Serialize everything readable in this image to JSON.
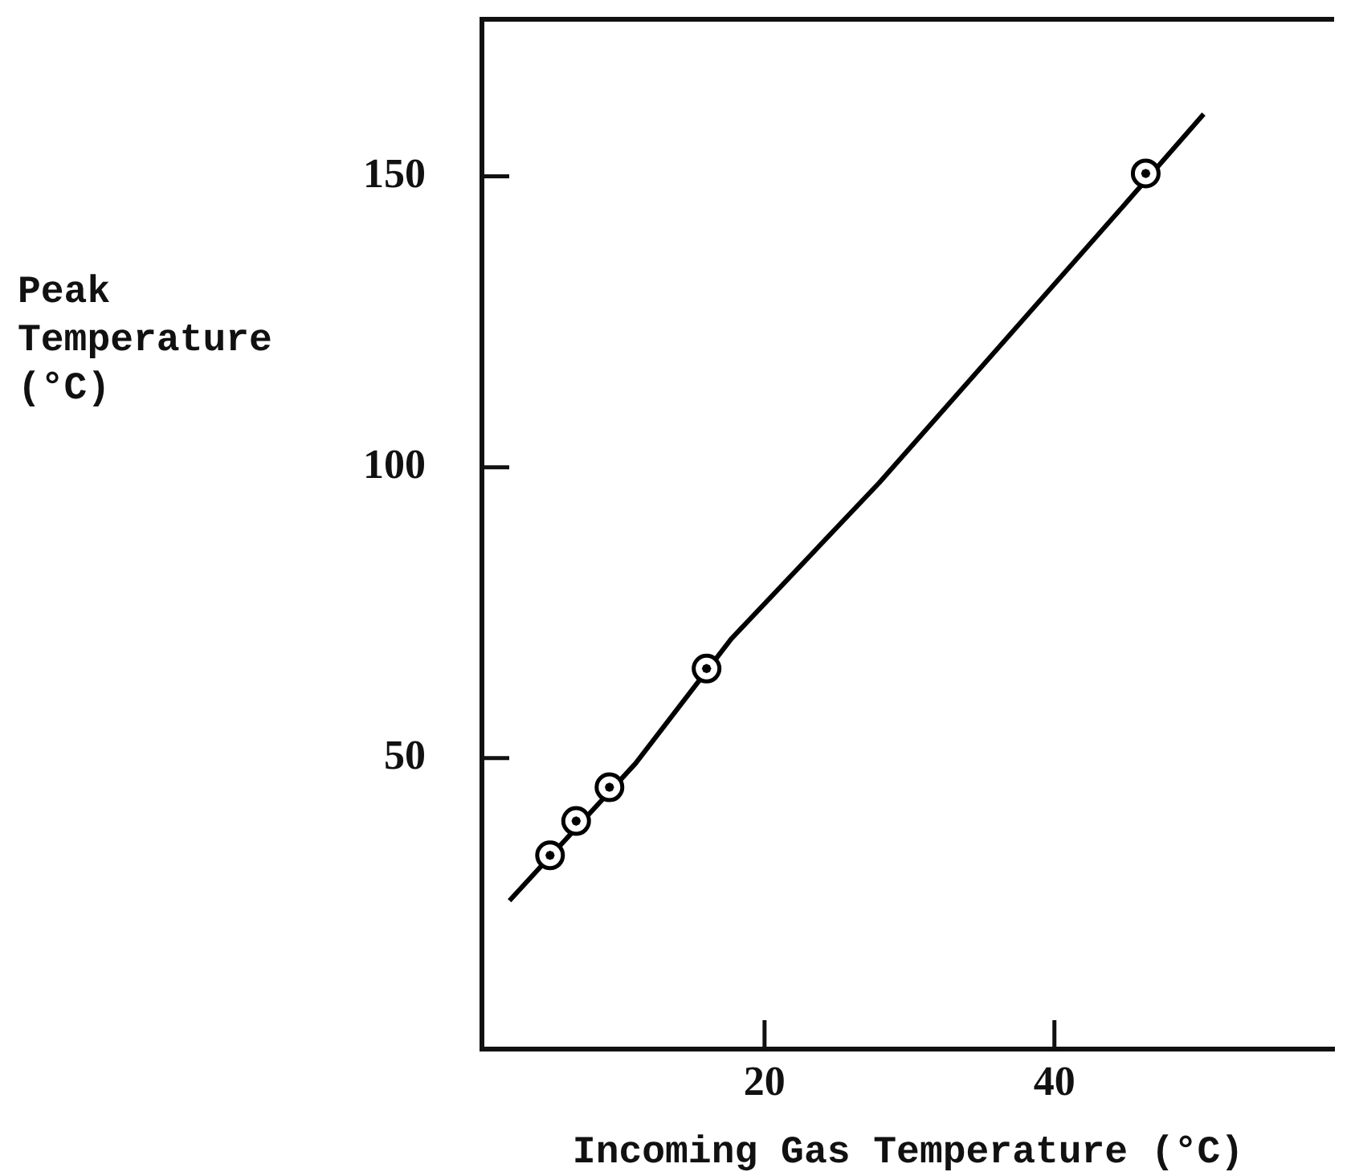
{
  "chart_data": {
    "type": "scatter",
    "xlabel": "Incoming Gas Temperature (°C)",
    "ylabel": "Peak Temperature (°C)",
    "xlim": [
      0.5,
      59.3
    ],
    "ylim": [
      0,
      177
    ],
    "xticks": [
      20,
      40
    ],
    "yticks": [
      50,
      100,
      150
    ],
    "series": [
      {
        "type": "scatter",
        "color": "#000000",
        "marker": "circle",
        "x": [
          5.2,
          7.0,
          9.3,
          16.0,
          46.3
        ],
        "values": [
          33.3,
          39.2,
          45.0,
          65.4,
          150.5
        ]
      },
      {
        "type": "line",
        "color": "#000000",
        "line_style": "solid",
        "marker": "none",
        "x": [
          2.4,
          11.1,
          17.7,
          27.9,
          44.9,
          50.3
        ],
        "values": [
          25.5,
          49.1,
          70.5,
          97.3,
          145.3,
          160.7
        ]
      }
    ]
  }
}
